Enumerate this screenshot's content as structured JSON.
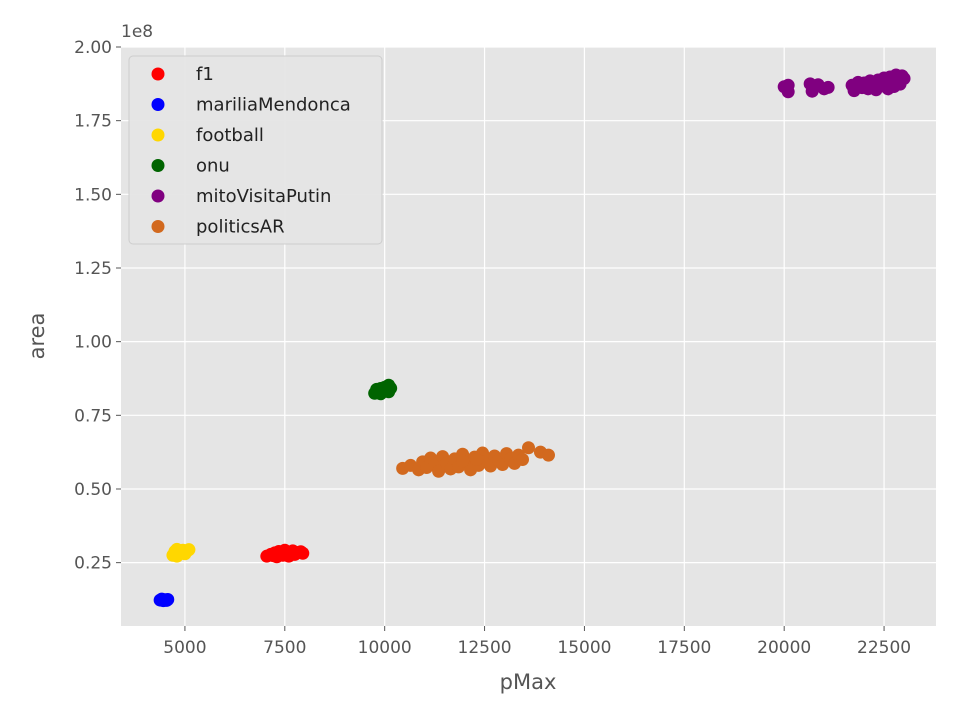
{
  "chart_data": {
    "type": "scatter",
    "xlabel": "pMax",
    "ylabel": "area",
    "y_offset_label": "1e8",
    "xlim": [
      3400,
      23800
    ],
    "ylim": [
      3500000,
      200000000
    ],
    "x_ticks": [
      5000,
      7500,
      10000,
      12500,
      15000,
      17500,
      20000,
      22500
    ],
    "x_tick_labels": [
      "5000",
      "7500",
      "10000",
      "12500",
      "15000",
      "17500",
      "20000",
      "22500"
    ],
    "y_ticks": [
      25000000,
      50000000,
      75000000,
      100000000,
      125000000,
      150000000,
      175000000,
      200000000
    ],
    "y_tick_labels": [
      "0.25",
      "0.50",
      "0.75",
      "1.00",
      "1.25",
      "1.50",
      "1.75",
      "2.00"
    ],
    "grid": true,
    "legend_position": "top-left",
    "background_color": "#e5e5e5",
    "grid_color": "#ffffff",
    "series": [
      {
        "name": "f1",
        "color": "#ff0000",
        "points": [
          [
            7050,
            27200000
          ],
          [
            7150,
            27800000
          ],
          [
            7250,
            28300000
          ],
          [
            7300,
            27000000
          ],
          [
            7350,
            28800000
          ],
          [
            7450,
            27500000
          ],
          [
            7500,
            29200000
          ],
          [
            7550,
            28000000
          ],
          [
            7600,
            27200000
          ],
          [
            7650,
            28600000
          ],
          [
            7700,
            29000000
          ],
          [
            7750,
            27800000
          ],
          [
            7800,
            28400000
          ],
          [
            7900,
            28700000
          ],
          [
            7950,
            28200000
          ],
          [
            7400,
            28400000
          ],
          [
            7200,
            27400000
          ]
        ]
      },
      {
        "name": "mariliaMendonca",
        "color": "#0000ff",
        "points": [
          [
            4380,
            12300000
          ],
          [
            4420,
            12600000
          ],
          [
            4460,
            12100000
          ],
          [
            4500,
            12400000
          ],
          [
            4540,
            12200000
          ],
          [
            4570,
            12500000
          ]
        ]
      },
      {
        "name": "football",
        "color": "#ffd700",
        "points": [
          [
            4700,
            27500000
          ],
          [
            4750,
            28800000
          ],
          [
            4800,
            29500000
          ],
          [
            4850,
            27900000
          ],
          [
            4900,
            28400000
          ],
          [
            4950,
            29200000
          ],
          [
            5000,
            28000000
          ],
          [
            5050,
            28900000
          ],
          [
            5100,
            29400000
          ],
          [
            4800,
            27200000
          ]
        ]
      },
      {
        "name": "onu",
        "color": "#006400",
        "points": [
          [
            9750,
            82500000
          ],
          [
            9800,
            83800000
          ],
          [
            9850,
            82800000
          ],
          [
            9900,
            84100000
          ],
          [
            9950,
            83200000
          ],
          [
            10000,
            84500000
          ],
          [
            10050,
            83600000
          ],
          [
            10100,
            85200000
          ],
          [
            10150,
            84200000
          ],
          [
            10100,
            83000000
          ],
          [
            9900,
            82300000
          ]
        ]
      },
      {
        "name": "mitoVisitaPutin",
        "color": "#800080",
        "points": [
          [
            20000,
            186500000
          ],
          [
            20100,
            184800000
          ],
          [
            20100,
            187000000
          ],
          [
            20650,
            187500000
          ],
          [
            20700,
            185000000
          ],
          [
            20850,
            187200000
          ],
          [
            21000,
            185800000
          ],
          [
            21100,
            186300000
          ],
          [
            21700,
            187000000
          ],
          [
            21750,
            185200000
          ],
          [
            21850,
            188000000
          ],
          [
            21950,
            186200000
          ],
          [
            22000,
            187800000
          ],
          [
            22100,
            185800000
          ],
          [
            22150,
            188500000
          ],
          [
            22250,
            187200000
          ],
          [
            22300,
            185500000
          ],
          [
            22350,
            188800000
          ],
          [
            22450,
            186800000
          ],
          [
            22500,
            189500000
          ],
          [
            22550,
            187500000
          ],
          [
            22600,
            185800000
          ],
          [
            22650,
            189800000
          ],
          [
            22700,
            188200000
          ],
          [
            22750,
            186600000
          ],
          [
            22800,
            190500000
          ],
          [
            22850,
            188800000
          ],
          [
            22900,
            187400000
          ],
          [
            22950,
            190200000
          ],
          [
            23000,
            189300000
          ]
        ]
      },
      {
        "name": "politicsAR",
        "color": "#d2691e",
        "points": [
          [
            10450,
            57000000
          ],
          [
            10650,
            58000000
          ],
          [
            10850,
            56500000
          ],
          [
            10950,
            59200000
          ],
          [
            11050,
            57300000
          ],
          [
            11150,
            60500000
          ],
          [
            11250,
            58000000
          ],
          [
            11350,
            56000000
          ],
          [
            11450,
            61000000
          ],
          [
            11550,
            58800000
          ],
          [
            11650,
            56800000
          ],
          [
            11750,
            60200000
          ],
          [
            11850,
            57500000
          ],
          [
            11950,
            61800000
          ],
          [
            12050,
            59000000
          ],
          [
            12150,
            56500000
          ],
          [
            12250,
            60800000
          ],
          [
            12350,
            58000000
          ],
          [
            12450,
            62200000
          ],
          [
            12550,
            59500000
          ],
          [
            12650,
            57800000
          ],
          [
            12750,
            61200000
          ],
          [
            12850,
            59800000
          ],
          [
            12950,
            58300000
          ],
          [
            13050,
            62000000
          ],
          [
            13150,
            60200000
          ],
          [
            13250,
            58700000
          ],
          [
            13350,
            61500000
          ],
          [
            13450,
            60000000
          ],
          [
            13600,
            64000000
          ],
          [
            13900,
            62500000
          ],
          [
            14100,
            61500000
          ],
          [
            11950,
            59500000
          ],
          [
            12300,
            60000000
          ]
        ]
      }
    ]
  }
}
